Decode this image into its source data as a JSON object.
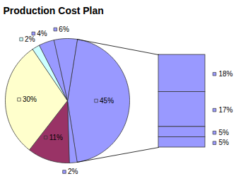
{
  "chart_data": [
    {
      "type": "pie",
      "title": "Production Cost Plan",
      "values": [
        45,
        2,
        11,
        30,
        2,
        4,
        6
      ],
      "value_labels": [
        "45%",
        "2%",
        "11%",
        "30%",
        "2%",
        "4%",
        "6%"
      ],
      "colors": [
        "#9999ff",
        "#9999ff",
        "#993366",
        "#ffffcc",
        "#ccffff",
        "#9999ff",
        "#9999ff"
      ],
      "data_labels": true
    },
    {
      "type": "bar",
      "stacked": true,
      "values": [
        18,
        17,
        5,
        5
      ],
      "value_labels": [
        "18%",
        "17%",
        "5%",
        "5%"
      ],
      "color": "#9999ff",
      "data_labels": true
    }
  ]
}
